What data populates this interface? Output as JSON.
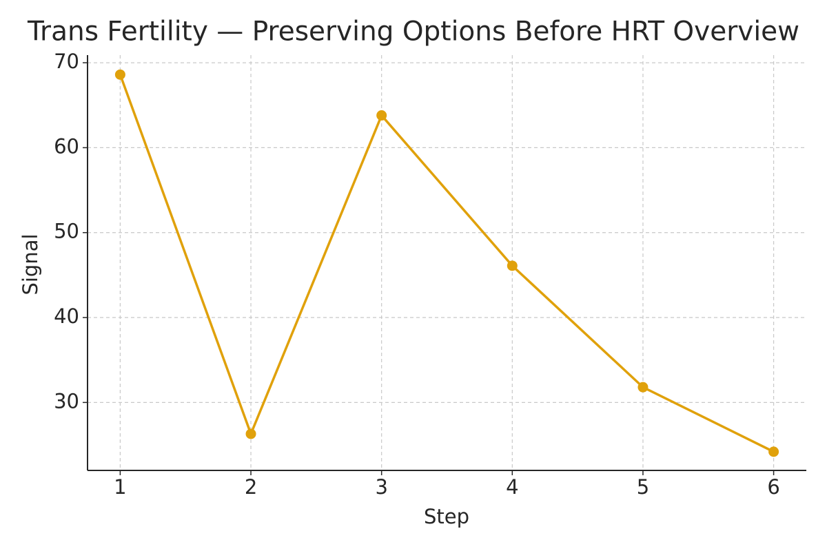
{
  "chart_data": {
    "type": "line",
    "title": "Trans Fertility — Preserving Options Before HRT Overview",
    "x_label": "Step",
    "y_label": "Signal",
    "x": [
      1,
      2,
      3,
      4,
      5,
      6
    ],
    "series": [
      {
        "name": "Signal",
        "color": "#e0a10b",
        "values": [
          68.6,
          26.3,
          63.8,
          46.1,
          31.8,
          24.2
        ]
      }
    ],
    "xlim": [
      0.75,
      6.25
    ],
    "xticks": [
      1,
      2,
      3,
      4,
      5,
      6
    ],
    "ylim": [
      22,
      70.9
    ],
    "yticks": [
      30,
      40,
      50,
      60,
      70
    ],
    "grid": true
  }
}
